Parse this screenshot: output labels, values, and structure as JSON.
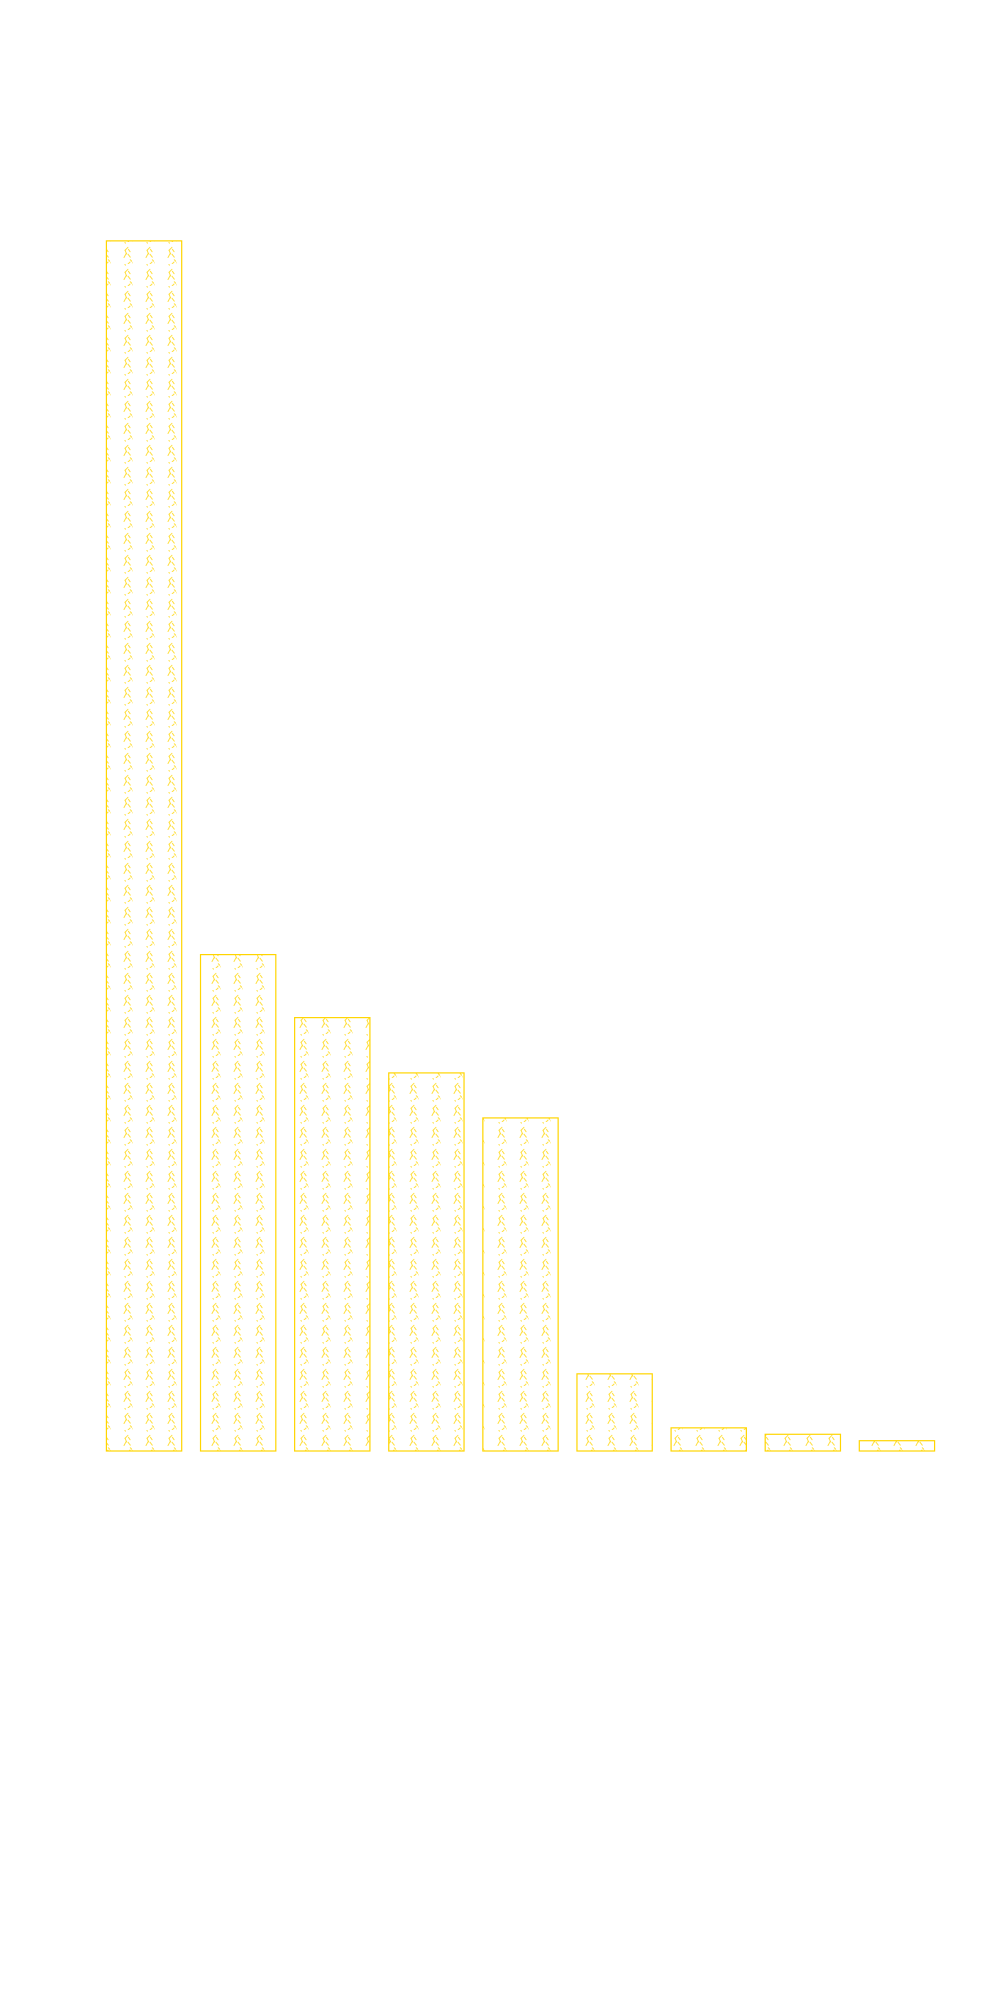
{
  "chart_data": {
    "type": "bar",
    "categories": [
      null,
      null,
      null,
      null,
      null,
      null,
      null,
      null,
      null
    ],
    "values": [
      941,
      386,
      337,
      294,
      259,
      60,
      18,
      13,
      8
    ],
    "color": "#ffd500",
    "ylim": [
      0,
      1000
    ]
  }
}
